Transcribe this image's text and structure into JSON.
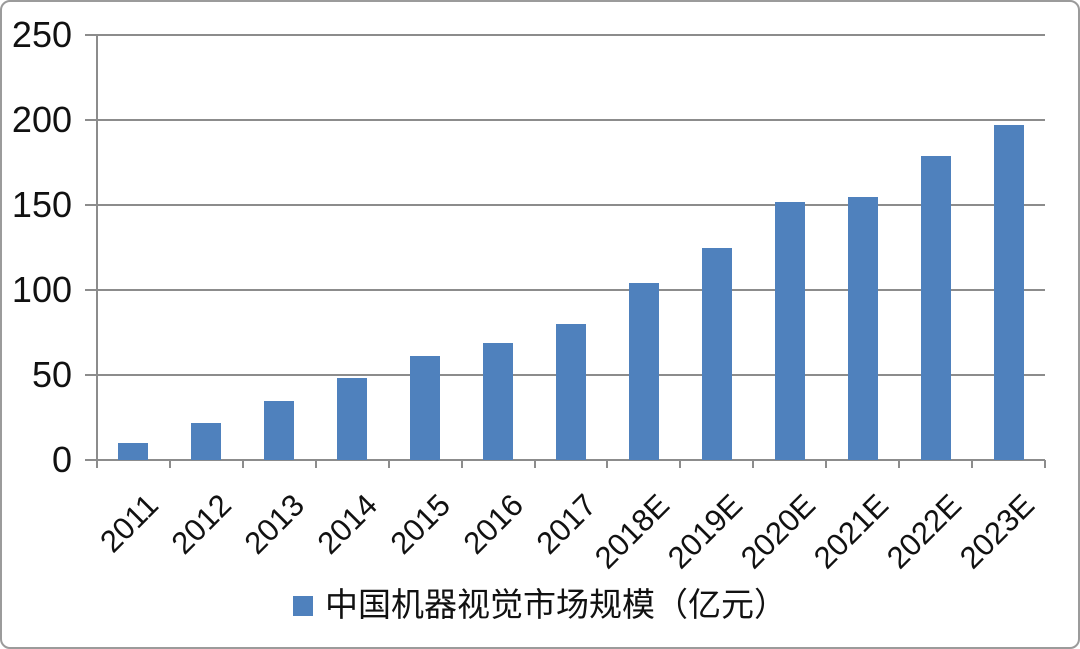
{
  "chart_data": {
    "type": "bar",
    "title": "",
    "categories": [
      "2011",
      "2012",
      "2013",
      "2014",
      "2015",
      "2016",
      "2017",
      "2018E",
      "2019E",
      "2020E",
      "2021E",
      "2022E",
      "2023E"
    ],
    "values": [
      10,
      22,
      35,
      48,
      61,
      69,
      80,
      104,
      125,
      152,
      155,
      179,
      197
    ],
    "legend": "中国机器视觉市场规模（亿元）",
    "legend_position": "bottom-center",
    "xlabel": "",
    "ylabel": "",
    "ylim": [
      0,
      250
    ],
    "yticks": [
      0,
      50,
      100,
      150,
      200,
      250
    ],
    "grid": "horizontal",
    "x_label_rotation_deg": 45,
    "bar_color": "#4f81bd",
    "axis_color": "#8c8c8c",
    "text_color": "#111111",
    "frame_border_color": "#9b9b9b",
    "background_color": "#ffffff"
  },
  "legend": {
    "marker_icon": "legend-square",
    "label": "中国机器视觉市场规模（亿元）"
  }
}
